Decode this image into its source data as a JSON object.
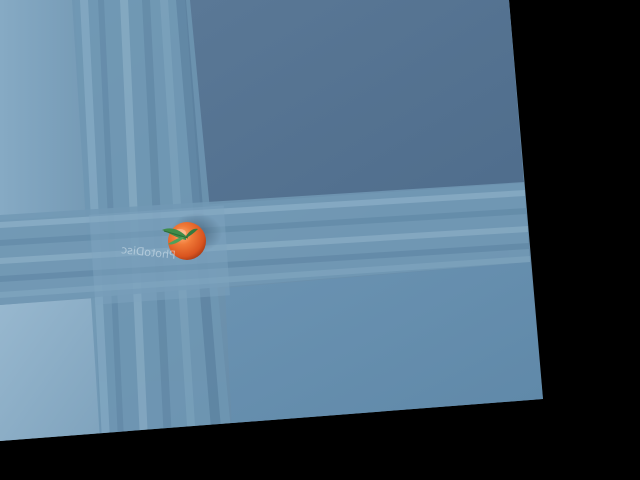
{
  "scene": {
    "subject": "tomato",
    "background_color": "#000000",
    "surface_color": "#6f93ac",
    "surface_dark_color": "#52708e",
    "tomato_color": "#e8622a",
    "leaf_color": "#3f8c4a",
    "watermark_text": "PhotoDisc"
  }
}
